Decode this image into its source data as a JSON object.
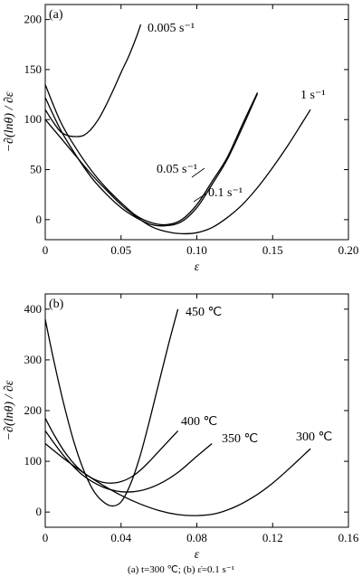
{
  "caption": "(a) t=300 ℃; (b)  ε̇=0.1 s⁻¹",
  "chart_data": [
    {
      "type": "line",
      "panel": "(a)",
      "xlabel": "ε",
      "ylabel": "−∂(lnθ) / ∂ε",
      "xlim": [
        0,
        0.2
      ],
      "ylim": [
        -20,
        215
      ],
      "xticks": [
        0,
        0.05,
        0.1,
        0.15,
        0.2
      ],
      "xtick_labels": [
        "0",
        "0.05",
        "0.10",
        "0.15",
        "0.20"
      ],
      "yticks": [
        0,
        50,
        100,
        150,
        200
      ],
      "ytick_labels": [
        "0",
        "50",
        "100",
        "150",
        "200"
      ],
      "grid": false,
      "series": [
        {
          "name": "0.005 s⁻¹",
          "x": [
            0,
            0.005,
            0.01,
            0.015,
            0.02,
            0.025,
            0.03,
            0.035,
            0.04,
            0.045,
            0.05,
            0.055,
            0.06,
            0.063
          ],
          "y": [
            110,
            98,
            88,
            84,
            83,
            84,
            90,
            100,
            114,
            130,
            147,
            163,
            182,
            195
          ]
        },
        {
          "name": "0.05 s⁻¹",
          "x": [
            0,
            0.01,
            0.02,
            0.03,
            0.04,
            0.05,
            0.06,
            0.07,
            0.08,
            0.09,
            0.1,
            0.11,
            0.12,
            0.13,
            0.14
          ],
          "y": [
            135,
            98,
            72,
            50,
            32,
            17,
            4,
            -3,
            -5,
            0,
            15,
            38,
            62,
            95,
            127
          ]
        },
        {
          "name": "0.1 s⁻¹",
          "x": [
            0,
            0.01,
            0.02,
            0.03,
            0.04,
            0.05,
            0.06,
            0.07,
            0.08,
            0.09,
            0.1,
            0.11,
            0.12,
            0.13,
            0.14
          ],
          "y": [
            122,
            90,
            65,
            43,
            26,
            12,
            2,
            -5,
            -6,
            -2,
            12,
            35,
            60,
            92,
            126
          ]
        },
        {
          "name": "1 s⁻¹",
          "x": [
            0,
            0.01,
            0.02,
            0.03,
            0.04,
            0.05,
            0.06,
            0.07,
            0.08,
            0.09,
            0.1,
            0.11,
            0.12,
            0.13,
            0.14,
            0.15,
            0.16,
            0.17,
            0.175
          ],
          "y": [
            100,
            82,
            64,
            46,
            30,
            15,
            3,
            -7,
            -12,
            -14,
            -13,
            -8,
            2,
            15,
            32,
            52,
            74,
            98,
            110
          ]
        }
      ],
      "annotations": [
        "0.005 s⁻¹",
        "0.05 s⁻¹",
        "0.1 s⁻¹",
        "1 s⁻¹"
      ]
    },
    {
      "type": "line",
      "panel": "(b)",
      "xlabel": "ε",
      "ylabel": "−∂(lnθ) / ∂ε",
      "xlim": [
        0,
        0.16
      ],
      "ylim": [
        -30,
        430
      ],
      "xticks": [
        0,
        0.04,
        0.08,
        0.12,
        0.16
      ],
      "xtick_labels": [
        "0",
        "0.04",
        "0.08",
        "0.12",
        "0.16"
      ],
      "yticks": [
        0,
        100,
        200,
        300,
        400
      ],
      "ytick_labels": [
        "0",
        "100",
        "200",
        "300",
        "400"
      ],
      "grid": false,
      "series": [
        {
          "name": "450 ℃",
          "x": [
            0,
            0.005,
            0.01,
            0.015,
            0.02,
            0.025,
            0.03,
            0.035,
            0.04,
            0.045,
            0.05,
            0.055,
            0.06,
            0.065,
            0.07
          ],
          "y": [
            380,
            290,
            210,
            140,
            85,
            45,
            22,
            12,
            20,
            55,
            110,
            180,
            255,
            330,
            400
          ]
        },
        {
          "name": "400 ℃",
          "x": [
            0,
            0.005,
            0.01,
            0.015,
            0.02,
            0.025,
            0.03,
            0.035,
            0.04,
            0.045,
            0.05,
            0.055,
            0.06,
            0.065,
            0.07
          ],
          "y": [
            185,
            150,
            120,
            96,
            78,
            66,
            59,
            57,
            60,
            68,
            82,
            100,
            120,
            140,
            160
          ]
        },
        {
          "name": "350 ℃",
          "x": [
            0,
            0.01,
            0.02,
            0.03,
            0.04,
            0.05,
            0.06,
            0.07,
            0.08,
            0.088
          ],
          "y": [
            160,
            110,
            72,
            50,
            40,
            42,
            55,
            78,
            110,
            135
          ]
        },
        {
          "name": "300 ℃",
          "x": [
            0,
            0.01,
            0.02,
            0.03,
            0.04,
            0.05,
            0.06,
            0.07,
            0.08,
            0.09,
            0.1,
            0.11,
            0.12,
            0.13,
            0.14
          ],
          "y": [
            135,
            105,
            78,
            54,
            33,
            16,
            3,
            -5,
            -7,
            -3,
            10,
            30,
            57,
            90,
            125
          ]
        }
      ],
      "annotations": [
        "450 ℃",
        "400 ℃",
        "350 ℃",
        "300 ℃"
      ]
    }
  ]
}
